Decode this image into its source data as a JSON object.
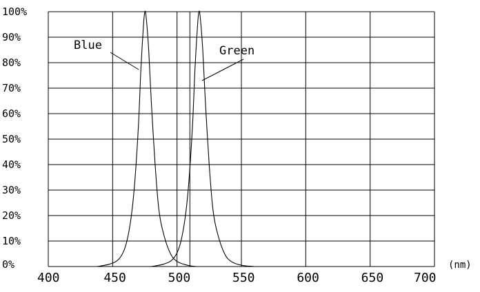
{
  "chart_data": {
    "type": "line",
    "title": "",
    "xlabel": "",
    "ylabel": "",
    "x_unit": "(nm)",
    "xlim": [
      400,
      700
    ],
    "ylim": [
      0,
      100
    ],
    "x_ticks": [
      400,
      450,
      500,
      550,
      600,
      650,
      700
    ],
    "x_tick_labels": [
      "400",
      "450",
      "500",
      "550",
      "600",
      "650",
      "700"
    ],
    "y_ticks": [
      0,
      10,
      20,
      30,
      40,
      50,
      60,
      70,
      80,
      90,
      100
    ],
    "y_tick_labels": [
      "0%",
      "10%",
      "20%",
      "30%",
      "40%",
      "50%",
      "60%",
      "70%",
      "80%",
      "90%",
      "100%"
    ],
    "grid": true,
    "x_gridlines": [
      400,
      450,
      500,
      510,
      550,
      600,
      650,
      700
    ],
    "series": [
      {
        "name": "Blue",
        "x": [
          438,
          448,
          455,
          460,
          464,
          467,
          470,
          472,
          474,
          475,
          476,
          478,
          480,
          483,
          486,
          490,
          495,
          500,
          508,
          515
        ],
        "y": [
          0,
          1,
          3,
          8,
          18,
          32,
          55,
          78,
          95,
          100,
          98,
          85,
          65,
          40,
          22,
          12,
          5,
          2,
          0.5,
          0
        ]
      },
      {
        "name": "Green",
        "x": [
          480,
          490,
          497,
          502,
          506,
          509,
          512,
          514,
          516,
          517,
          518,
          520,
          522,
          525,
          528,
          532,
          537,
          542,
          550,
          560
        ],
        "y": [
          0,
          1,
          3,
          8,
          18,
          32,
          55,
          78,
          95,
          100,
          98,
          85,
          65,
          40,
          22,
          12,
          5,
          2,
          0.5,
          0
        ]
      }
    ],
    "annotations": [
      {
        "text": "Blue",
        "series": "Blue"
      },
      {
        "text": "Green",
        "series": "Green"
      }
    ]
  }
}
